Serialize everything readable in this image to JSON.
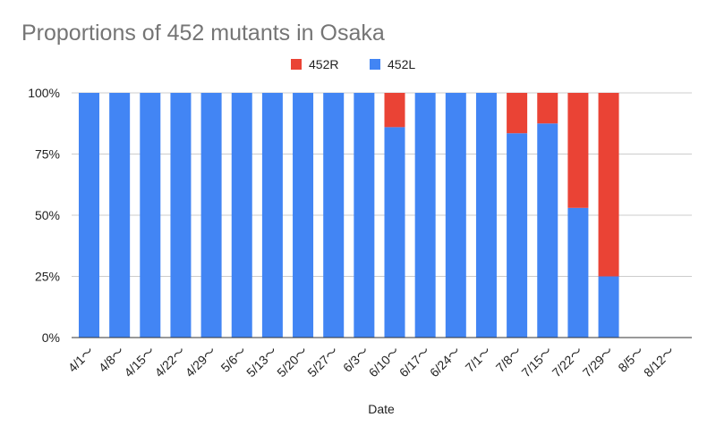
{
  "chart_data": {
    "type": "bar",
    "stacked": true,
    "normalized": true,
    "title": "Proportions of 452 mutants in Osaka",
    "xlabel": "Date",
    "ylabel": "",
    "ylim": [
      0,
      100
    ],
    "y_ticks": [
      "0%",
      "25%",
      "50%",
      "75%",
      "100%"
    ],
    "grid": true,
    "legend_position": "top",
    "categories": [
      "4/1～",
      "4/8～",
      "4/15～",
      "4/22～",
      "4/29～",
      "5/6～",
      "5/13～",
      "5/20～",
      "5/27～",
      "6/3～",
      "6/10～",
      "6/17～",
      "6/24～",
      "7/1～",
      "7/8～",
      "7/15～",
      "7/22～",
      "7/29～",
      "8/5～",
      "8/12～"
    ],
    "series": [
      {
        "name": "452L",
        "color": "#4285f4",
        "values": [
          100,
          100,
          100,
          100,
          100,
          100,
          100,
          100,
          100,
          100,
          86,
          100,
          100,
          100,
          83.5,
          87.5,
          53,
          25,
          0,
          0
        ]
      },
      {
        "name": "452R",
        "color": "#ea4335",
        "values": [
          0,
          0,
          0,
          0,
          0,
          0,
          0,
          0,
          0,
          0,
          14,
          0,
          0,
          0,
          16.5,
          12.5,
          47,
          75,
          0,
          0
        ]
      }
    ],
    "legend_order": [
      "452R",
      "452L"
    ]
  }
}
